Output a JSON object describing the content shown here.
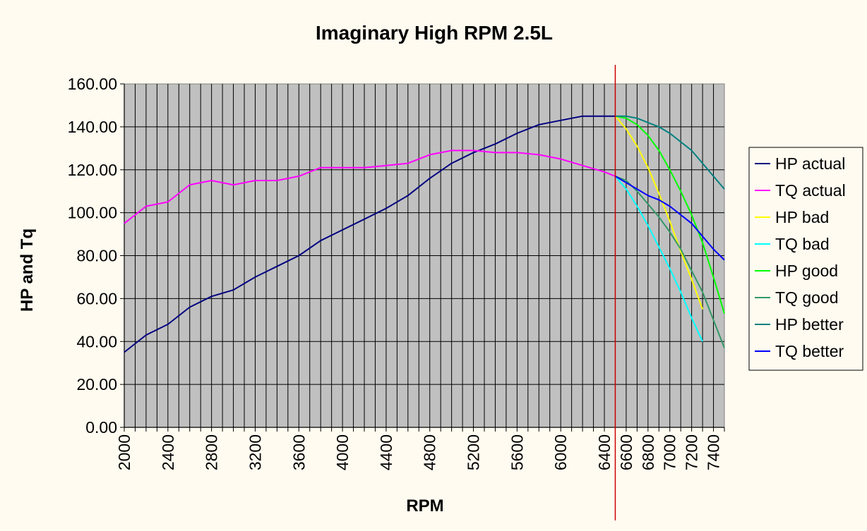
{
  "chart_data": {
    "type": "line",
    "title": "Imaginary High RPM 2.5L",
    "xlabel": "RPM",
    "ylabel": "HP and Tq",
    "xlim": [
      2000,
      7500
    ],
    "ylim": [
      0,
      160
    ],
    "x_ticks": [
      2000,
      2400,
      2800,
      3200,
      3600,
      4000,
      4400,
      4800,
      5200,
      5600,
      6000,
      6400,
      6600,
      6800,
      7000,
      7200,
      7400
    ],
    "y_ticks": [
      "0.00",
      "20.00",
      "40.00",
      "60.00",
      "80.00",
      "100.00",
      "120.00",
      "140.00",
      "160.00"
    ],
    "grid": true,
    "plot_background": "#c0c0c0",
    "legend_position": "right",
    "vertical_marker": {
      "x": 6500,
      "color": "#cc0000"
    },
    "series": [
      {
        "name": "HP actual",
        "color": "#000080",
        "x": [
          2000,
          2200,
          2400,
          2600,
          2800,
          3000,
          3200,
          3400,
          3600,
          3800,
          4000,
          4200,
          4400,
          4600,
          4800,
          5000,
          5200,
          5400,
          5600,
          5800,
          6000,
          6200,
          6400,
          6500
        ],
        "values": [
          35,
          43,
          48,
          56,
          61,
          64,
          70,
          75,
          80,
          87,
          92,
          97,
          102,
          108,
          116,
          123,
          128,
          132,
          137,
          141,
          143,
          145,
          145,
          145
        ]
      },
      {
        "name": "TQ actual",
        "color": "#ff00ff",
        "x": [
          2000,
          2200,
          2400,
          2600,
          2800,
          3000,
          3200,
          3400,
          3600,
          3800,
          4000,
          4200,
          4400,
          4600,
          4800,
          5000,
          5200,
          5400,
          5600,
          5800,
          6000,
          6200,
          6400,
          6500
        ],
        "values": [
          95,
          103,
          105,
          113,
          115,
          113,
          115,
          115,
          117,
          121,
          121,
          121,
          122,
          123,
          127,
          129,
          129,
          128,
          128,
          127,
          125,
          122,
          119,
          117
        ]
      },
      {
        "name": "HP bad",
        "color": "#ffff00",
        "x": [
          6500,
          6600,
          6700,
          6800,
          6900,
          7000,
          7100,
          7200,
          7300
        ],
        "values": [
          145,
          139,
          131,
          121,
          109,
          96,
          82,
          69,
          55
        ]
      },
      {
        "name": "TQ bad",
        "color": "#00ffff",
        "x": [
          6500,
          6600,
          6700,
          6800,
          6900,
          7000,
          7100,
          7200,
          7300
        ],
        "values": [
          117,
          111,
          103,
          94,
          84,
          74,
          63,
          51,
          40
        ]
      },
      {
        "name": "HP good",
        "color": "#00ff00",
        "x": [
          6500,
          6600,
          6700,
          6800,
          6900,
          7000,
          7100,
          7200,
          7300,
          7400,
          7500
        ],
        "values": [
          145,
          144,
          141,
          136,
          129,
          120,
          110,
          99,
          86,
          70,
          53
        ]
      },
      {
        "name": "TQ good",
        "color": "#339966",
        "x": [
          6500,
          6600,
          6700,
          6800,
          6900,
          7000,
          7100,
          7200,
          7300,
          7400,
          7500
        ],
        "values": [
          117,
          115,
          110,
          104,
          98,
          91,
          83,
          73,
          63,
          50,
          37
        ]
      },
      {
        "name": "HP better",
        "color": "#008080",
        "x": [
          6500,
          6600,
          6700,
          6800,
          6900,
          7000,
          7100,
          7200,
          7300,
          7400,
          7500
        ],
        "values": [
          145,
          145,
          144,
          142,
          140,
          137,
          133,
          129,
          123,
          117,
          111
        ]
      },
      {
        "name": "TQ better",
        "color": "#0000ff",
        "x": [
          6500,
          6600,
          6700,
          6800,
          6900,
          7000,
          7100,
          7200,
          7300,
          7400,
          7500
        ],
        "values": [
          117,
          114,
          111,
          108,
          106,
          103,
          99,
          95,
          89,
          83,
          78
        ]
      }
    ]
  }
}
